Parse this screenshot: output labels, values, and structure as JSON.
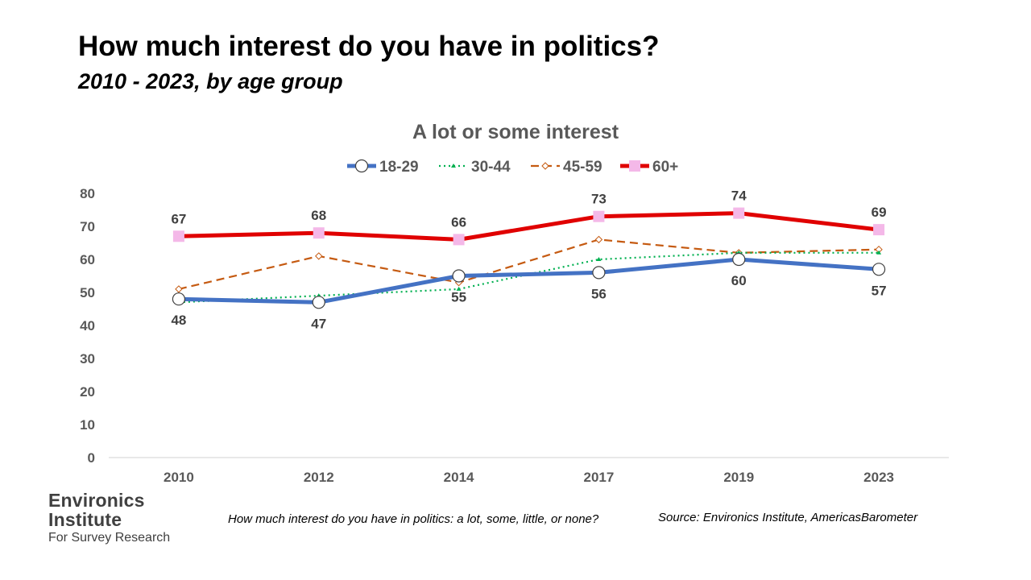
{
  "header": {
    "title": "How much interest do you have in politics?",
    "subtitle": "2010 - 2023, by age group"
  },
  "chart_data": {
    "type": "line",
    "title": "A lot or some interest",
    "categories": [
      "2010",
      "2012",
      "2014",
      "2017",
      "2019",
      "2023"
    ],
    "ylim": [
      0,
      80
    ],
    "yticks": [
      0,
      10,
      20,
      30,
      40,
      50,
      60,
      70,
      80
    ],
    "grid": false,
    "legend_position": "top",
    "series": [
      {
        "name": "18-29",
        "values": [
          48,
          47,
          55,
          56,
          60,
          57
        ],
        "color": "#4472C4",
        "line": "solid",
        "marker": "circle",
        "labels": "below",
        "labeled": true
      },
      {
        "name": "30-44",
        "values": [
          47,
          49,
          51,
          60,
          62,
          62
        ],
        "color": "#00B050",
        "line": "dotted",
        "marker": "triangle",
        "labeled": false
      },
      {
        "name": "45-59",
        "values": [
          51,
          61,
          53,
          66,
          62,
          63
        ],
        "color": "#C55A11",
        "line": "dashed",
        "marker": "diamond",
        "labeled": false
      },
      {
        "name": "60+",
        "values": [
          67,
          68,
          66,
          73,
          74,
          69
        ],
        "color": "#E00000",
        "line": "solid",
        "marker": "square",
        "marker_color": "#F4B8E8",
        "labels": "above",
        "labeled": true
      }
    ]
  },
  "logo": {
    "line1": "Environics",
    "line2": "Institute",
    "line3": "For Survey Research"
  },
  "footer": {
    "note": "How much interest do you have in politics: a lot, some, little, or none?",
    "source": "Source: Environics Institute, AmericasBarometer"
  }
}
